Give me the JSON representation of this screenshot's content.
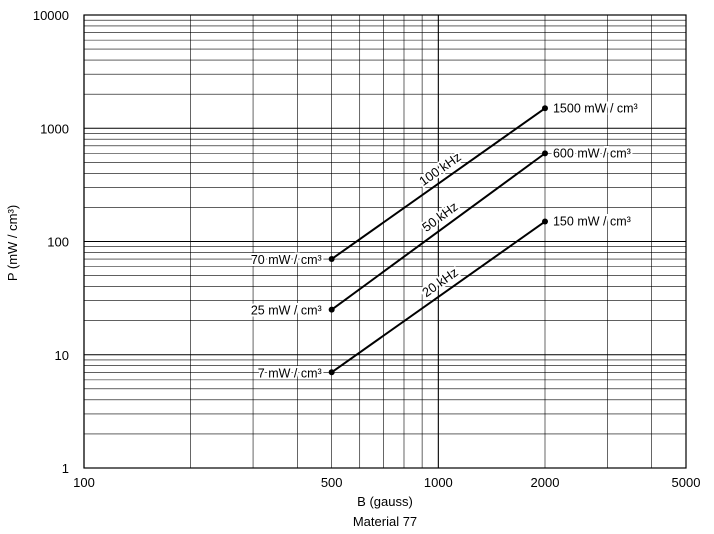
{
  "chart_data": {
    "type": "line",
    "title": "",
    "caption": "Material 77",
    "xlabel": "B (gauss)",
    "ylabel": "P (mW / cm³)",
    "x_scale": "log",
    "y_scale": "log",
    "xlim": [
      100,
      5000
    ],
    "ylim": [
      1,
      10000
    ],
    "grid": true,
    "x_ticks": [
      {
        "value": 100,
        "label": "100"
      },
      {
        "value": 500,
        "label": "500"
      },
      {
        "value": 1000,
        "label": "1000"
      },
      {
        "value": 2000,
        "label": "2000"
      },
      {
        "value": 5000,
        "label": "5000"
      }
    ],
    "y_ticks": [
      {
        "value": 1,
        "label": "1"
      },
      {
        "value": 10,
        "label": "10"
      },
      {
        "value": 100,
        "label": "100"
      },
      {
        "value": 1000,
        "label": "1000"
      },
      {
        "value": 10000,
        "label": "10000"
      }
    ],
    "series": [
      {
        "name": "100 kHz",
        "x": [
          500,
          2000
        ],
        "y": [
          70,
          1500
        ],
        "start_label": "70 mW / cm³",
        "end_label": "1500 mW / cm³"
      },
      {
        "name": "50 kHz",
        "x": [
          500,
          2000
        ],
        "y": [
          25,
          600
        ],
        "start_label": "25 mW / cm³",
        "end_label": "600 mW / cm³"
      },
      {
        "name": "20 kHz",
        "x": [
          500,
          2000
        ],
        "y": [
          7,
          150
        ],
        "start_label": "7 mW / cm³",
        "end_label": "150 mW / cm³"
      }
    ]
  }
}
